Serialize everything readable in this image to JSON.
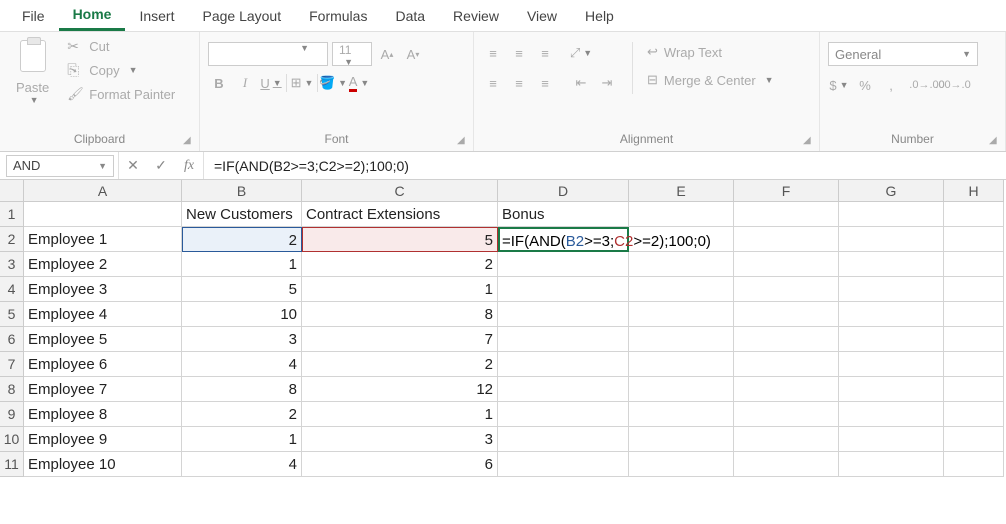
{
  "tabs": [
    "File",
    "Home",
    "Insert",
    "Page Layout",
    "Formulas",
    "Data",
    "Review",
    "View",
    "Help"
  ],
  "activeTab": 1,
  "ribbon": {
    "clipboard": {
      "paste": "Paste",
      "cut": "Cut",
      "copy": "Copy",
      "painter": "Format Painter",
      "label": "Clipboard"
    },
    "font": {
      "size": "11",
      "label": "Font"
    },
    "alignment": {
      "wrap": "Wrap Text",
      "merge": "Merge & Center",
      "label": "Alignment"
    },
    "number": {
      "format": "General",
      "label": "Number"
    }
  },
  "nameBox": "AND",
  "formula": "=IF(AND(B2>=3;C2>=2);100;0)",
  "columns": [
    "A",
    "B",
    "C",
    "D",
    "E",
    "F",
    "G",
    "H"
  ],
  "headers": {
    "b": "New Customers",
    "c": "Contract Extensions",
    "d": "Bonus"
  },
  "rows": [
    {
      "n": "1",
      "a": "",
      "b": "",
      "c": "",
      "d": ""
    },
    {
      "n": "2",
      "a": "Employee 1",
      "b": "2",
      "c": "5",
      "d": "=IF(AND(B2>=3;C2>=2);100;0)"
    },
    {
      "n": "3",
      "a": "Employee 2",
      "b": "1",
      "c": "2",
      "d": ""
    },
    {
      "n": "4",
      "a": "Employee 3",
      "b": "5",
      "c": "1",
      "d": ""
    },
    {
      "n": "5",
      "a": "Employee 4",
      "b": "10",
      "c": "8",
      "d": ""
    },
    {
      "n": "6",
      "a": "Employee 5",
      "b": "3",
      "c": "7",
      "d": ""
    },
    {
      "n": "7",
      "a": "Employee 6",
      "b": "4",
      "c": "2",
      "d": ""
    },
    {
      "n": "8",
      "a": "Employee 7",
      "b": "8",
      "c": "12",
      "d": ""
    },
    {
      "n": "9",
      "a": "Employee 8",
      "b": "2",
      "c": "1",
      "d": ""
    },
    {
      "n": "10",
      "a": "Employee 9",
      "b": "1",
      "c": "3",
      "d": ""
    },
    {
      "n": "11",
      "a": "Employee 10",
      "b": "4",
      "c": "6",
      "d": ""
    }
  ]
}
